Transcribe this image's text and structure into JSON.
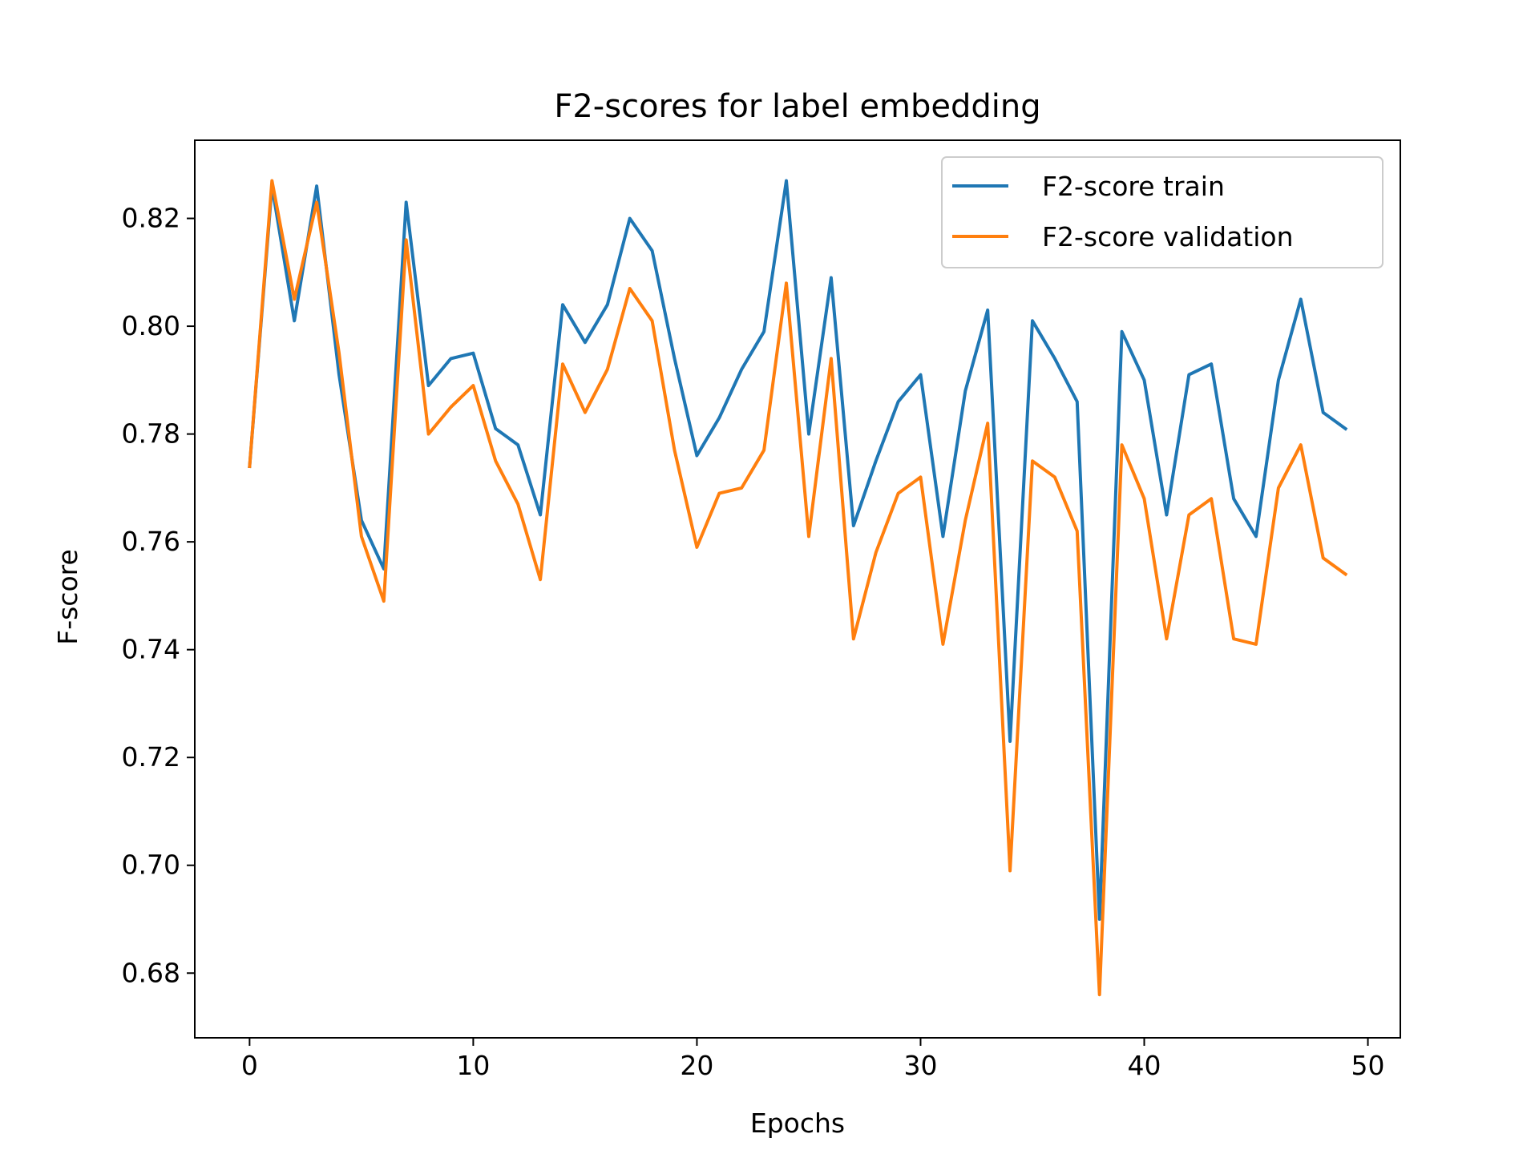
{
  "chart_data": {
    "type": "line",
    "title": "F2-scores for label embedding",
    "xlabel": "Epochs",
    "ylabel": "F-score",
    "xlim": [
      -2.45,
      51.45
    ],
    "ylim": [
      0.668,
      0.8345
    ],
    "xticks": [
      0,
      10,
      20,
      30,
      40,
      50
    ],
    "yticks": [
      0.68,
      0.7,
      0.72,
      0.74,
      0.76,
      0.78,
      0.8,
      0.82
    ],
    "xtick_labels": [
      "0",
      "10",
      "20",
      "30",
      "40",
      "50"
    ],
    "ytick_labels": [
      "0.68",
      "0.70",
      "0.72",
      "0.74",
      "0.76",
      "0.78",
      "0.80",
      "0.82"
    ],
    "grid": false,
    "legend_position": "top-right",
    "x": [
      0,
      1,
      2,
      3,
      4,
      5,
      6,
      7,
      8,
      9,
      10,
      11,
      12,
      13,
      14,
      15,
      16,
      17,
      18,
      19,
      20,
      21,
      22,
      23,
      24,
      25,
      26,
      27,
      28,
      29,
      30,
      31,
      32,
      33,
      34,
      35,
      36,
      37,
      38,
      39,
      40,
      41,
      42,
      43,
      44,
      45,
      46,
      47,
      48,
      49
    ],
    "series": [
      {
        "name": "F2-score train",
        "color": "#1f77b4",
        "values": [
          0.774,
          0.826,
          0.801,
          0.826,
          0.791,
          0.764,
          0.755,
          0.823,
          0.789,
          0.794,
          0.795,
          0.781,
          0.778,
          0.765,
          0.804,
          0.797,
          0.804,
          0.82,
          0.814,
          0.794,
          0.776,
          0.783,
          0.792,
          0.799,
          0.827,
          0.78,
          0.809,
          0.763,
          0.775,
          0.786,
          0.791,
          0.761,
          0.788,
          0.803,
          0.723,
          0.801,
          0.794,
          0.786,
          0.69,
          0.799,
          0.79,
          0.765,
          0.791,
          0.793,
          0.768,
          0.761,
          0.79,
          0.805,
          0.784,
          0.781
        ]
      },
      {
        "name": "F2-score validation",
        "color": "#ff7f0e",
        "values": [
          0.774,
          0.827,
          0.805,
          0.823,
          0.795,
          0.761,
          0.749,
          0.816,
          0.78,
          0.785,
          0.789,
          0.775,
          0.767,
          0.753,
          0.793,
          0.784,
          0.792,
          0.807,
          0.801,
          0.777,
          0.759,
          0.769,
          0.77,
          0.777,
          0.808,
          0.761,
          0.794,
          0.742,
          0.758,
          0.769,
          0.772,
          0.741,
          0.764,
          0.782,
          0.699,
          0.775,
          0.772,
          0.762,
          0.676,
          0.778,
          0.768,
          0.742,
          0.765,
          0.768,
          0.742,
          0.741,
          0.77,
          0.778,
          0.757,
          0.754
        ]
      }
    ]
  }
}
